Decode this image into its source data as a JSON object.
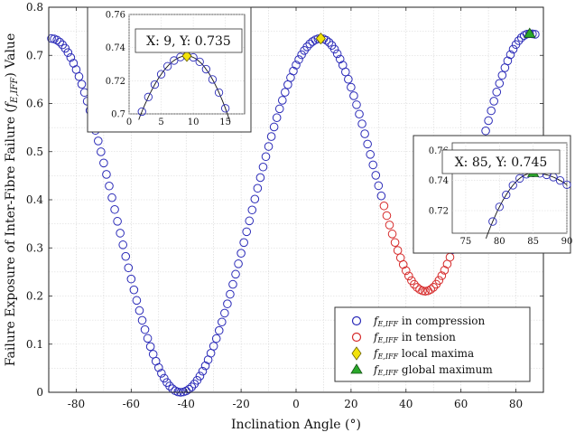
{
  "chart_data": {
    "type": "scatter",
    "title": "",
    "xlabel": "Inclination Angle (°)",
    "ylabel": "Failure Exposure of Inter-Fibre Failure (f_{E,IFF}) Value",
    "ylabel_parts": {
      "prefix": "Failure Exposure of Inter-Fibre Failure (",
      "var": "f",
      "sub": "E,IFF",
      "suffix": ") Value"
    },
    "xlim": [
      -90,
      90
    ],
    "ylim": [
      0,
      0.8
    ],
    "xticks": [
      "-80",
      "-60",
      "-40",
      "-20",
      "0",
      "20",
      "40",
      "60",
      "80"
    ],
    "yticks": [
      "0",
      "0.1",
      "0.2",
      "0.3",
      "0.4",
      "0.5",
      "0.6",
      "0.7",
      "0.8"
    ],
    "grid": true,
    "legend_position": "bottom-right",
    "curve_params": {
      "x_min": -89,
      "x_max": 87,
      "step": 1,
      "trough_left_x": -42,
      "trough_left_y": 0.0,
      "trough_right_x": 47,
      "trough_right_y": 0.21,
      "peak_mid_x": 9,
      "peak_mid_y": 0.735,
      "peak_right_x": 85,
      "peak_right_y": 0.745,
      "tension_range": [
        32,
        56
      ]
    },
    "series": [
      {
        "name": "f_E,IFF in compression",
        "var": "f",
        "sub": "E,IFF",
        "desc": " in compression",
        "marker": "open-circle",
        "color": "#2b2bb8"
      },
      {
        "name": "f_E,IFF in tension",
        "var": "f",
        "sub": "E,IFF",
        "desc": " in tension",
        "marker": "open-circle",
        "color": "#d62a2a"
      },
      {
        "name": "f_E,IFF local maxima",
        "var": "f",
        "sub": "E,IFF",
        "desc": " local maxima",
        "marker": "diamond",
        "color": "#f2e20a",
        "x": 9,
        "y": 0.735
      },
      {
        "name": "f_E,IFF global maximum",
        "var": "f",
        "sub": "E,IFF",
        "desc": " global maximum",
        "marker": "triangle",
        "color": "#2aa82a",
        "x": 85,
        "y": 0.745
      }
    ],
    "insets": [
      {
        "name": "local-maximum-zoom",
        "xlim": [
          0,
          18
        ],
        "ylim": [
          0.7,
          0.76
        ],
        "xticks": [
          "0",
          "5",
          "10",
          "15"
        ],
        "yticks": [
          "0.7",
          "0.72",
          "0.74",
          "0.76"
        ],
        "datatip": "X: 9, Y: 0.735",
        "point": {
          "x": 9,
          "y": 0.735
        }
      },
      {
        "name": "global-maximum-zoom",
        "xlim": [
          73,
          90
        ],
        "ylim": [
          0.705,
          0.765
        ],
        "xticks": [
          "75",
          "80",
          "85",
          "90"
        ],
        "yticks": [
          "0.72",
          "0.74",
          "0.76"
        ],
        "datatip": "X: 85, Y: 0.745",
        "point": {
          "x": 85,
          "y": 0.745
        }
      }
    ]
  }
}
